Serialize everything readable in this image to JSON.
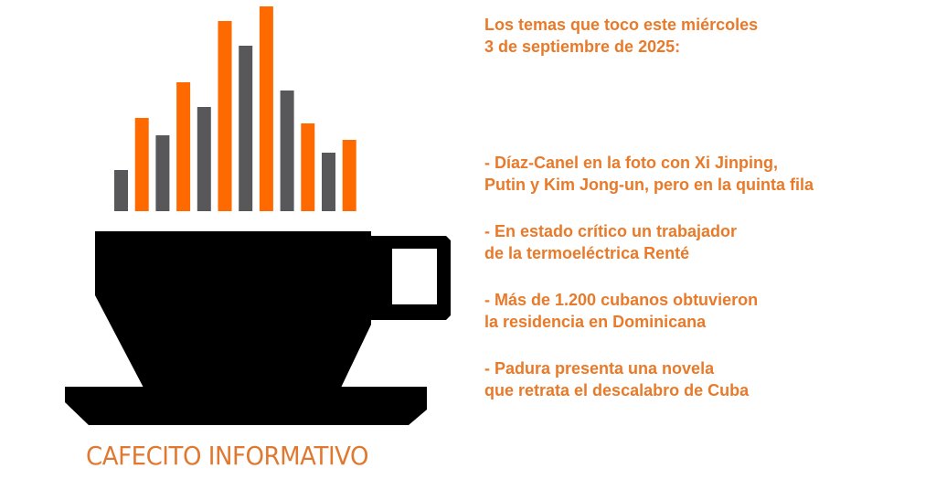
{
  "logo": {
    "brand_name": "CAFECITO INFORMATIVO",
    "colors": {
      "orange": "#ff6a00",
      "gray": "#58585a",
      "cup": "#000000",
      "text": "#e87a2a"
    }
  },
  "heading": {
    "line1": "Los temas que toco este miércoles",
    "line2": "3 de septiembre de 2025:"
  },
  "topics": [
    {
      "line1": "- Díaz-Canel en la foto con Xi Jinping,",
      "line2": "Putin y Kim Jong-un, pero en la quinta fila"
    },
    {
      "line1": "- En estado crítico un trabajador",
      "line2": "de la termoeléctrica Renté"
    },
    {
      "line1": "- Más de 1.200 cubanos obtuvieron",
      "line2": "la residencia en Dominicana"
    },
    {
      "line1": "- Padura presenta una novela",
      "line2": "que retrata el descalabro de Cuba"
    }
  ]
}
